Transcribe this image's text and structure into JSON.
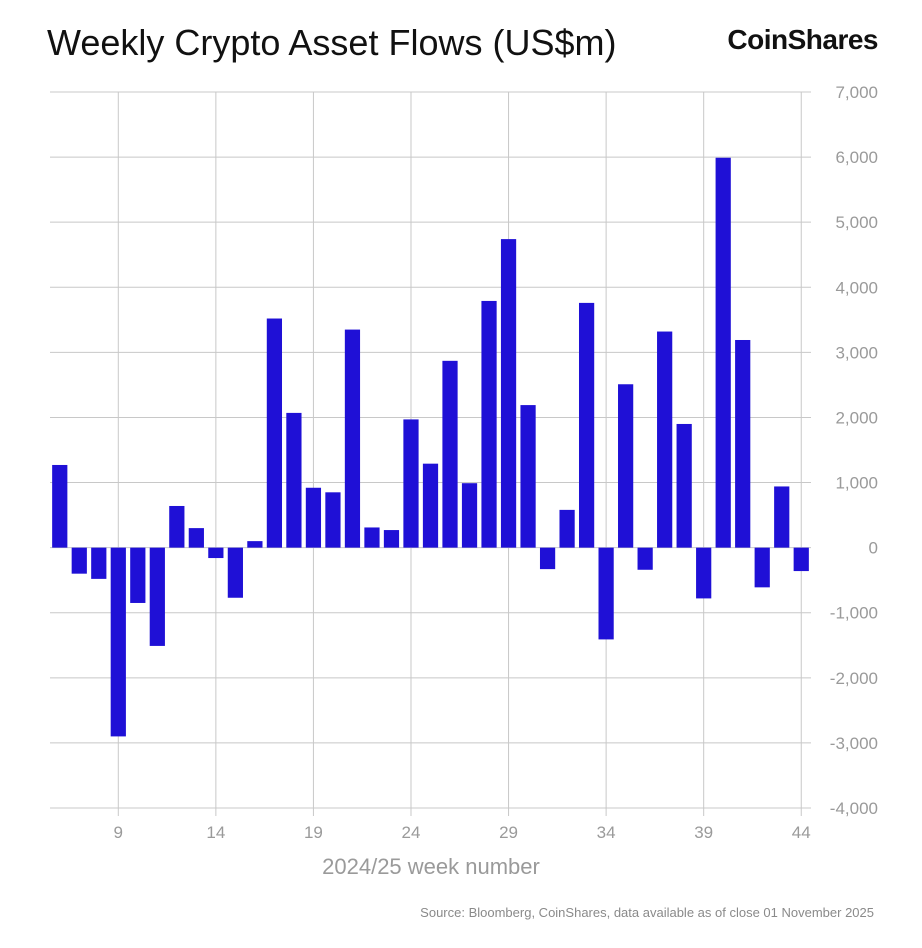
{
  "header": {
    "title": "Weekly Crypto Asset Flows (US$m)",
    "brand": "CoinShares"
  },
  "footer": {
    "source": "Source: Bloomberg, CoinShares, data available as of close 01 November 2025"
  },
  "colors": {
    "bar": "#1f10d6",
    "grid": "#c8c8c8",
    "tick_text": "#9a9a9a",
    "title_text": "#111111"
  },
  "chart_data": {
    "type": "bar",
    "title": "Weekly Crypto Asset Flows (US$m)",
    "xlabel": "2024/25 week number",
    "ylabel": "",
    "ylim": [
      -4000,
      7000
    ],
    "xlim": [
      5.5,
      44.5
    ],
    "y_axis_side": "right",
    "grid": true,
    "xticks": [
      9,
      14,
      19,
      24,
      29,
      34,
      39,
      44
    ],
    "yticks": [
      -4000,
      -3000,
      -2000,
      -1000,
      0,
      1000,
      2000,
      3000,
      4000,
      5000,
      6000,
      7000
    ],
    "ytick_labels": [
      "-4,000",
      "-3,000",
      "-2,000",
      "-1,000",
      "0",
      "1,000",
      "2,000",
      "3,000",
      "4,000",
      "5,000",
      "6,000",
      "7,000"
    ],
    "categories": [
      6,
      7,
      8,
      9,
      10,
      11,
      12,
      13,
      14,
      15,
      16,
      17,
      18,
      19,
      20,
      21,
      22,
      23,
      24,
      25,
      26,
      27,
      28,
      29,
      30,
      31,
      32,
      33,
      34,
      35,
      36,
      37,
      38,
      39,
      40,
      41,
      42,
      43,
      44
    ],
    "values": [
      1270,
      -400,
      -480,
      -2900,
      -850,
      -1510,
      640,
      300,
      -160,
      -770,
      100,
      3520,
      2070,
      920,
      850,
      3350,
      310,
      270,
      1970,
      1290,
      2870,
      990,
      3790,
      4740,
      2190,
      -330,
      580,
      3760,
      -1410,
      2510,
      -340,
      3320,
      1900,
      -780,
      5990,
      3190,
      -610,
      940,
      -360
    ]
  }
}
